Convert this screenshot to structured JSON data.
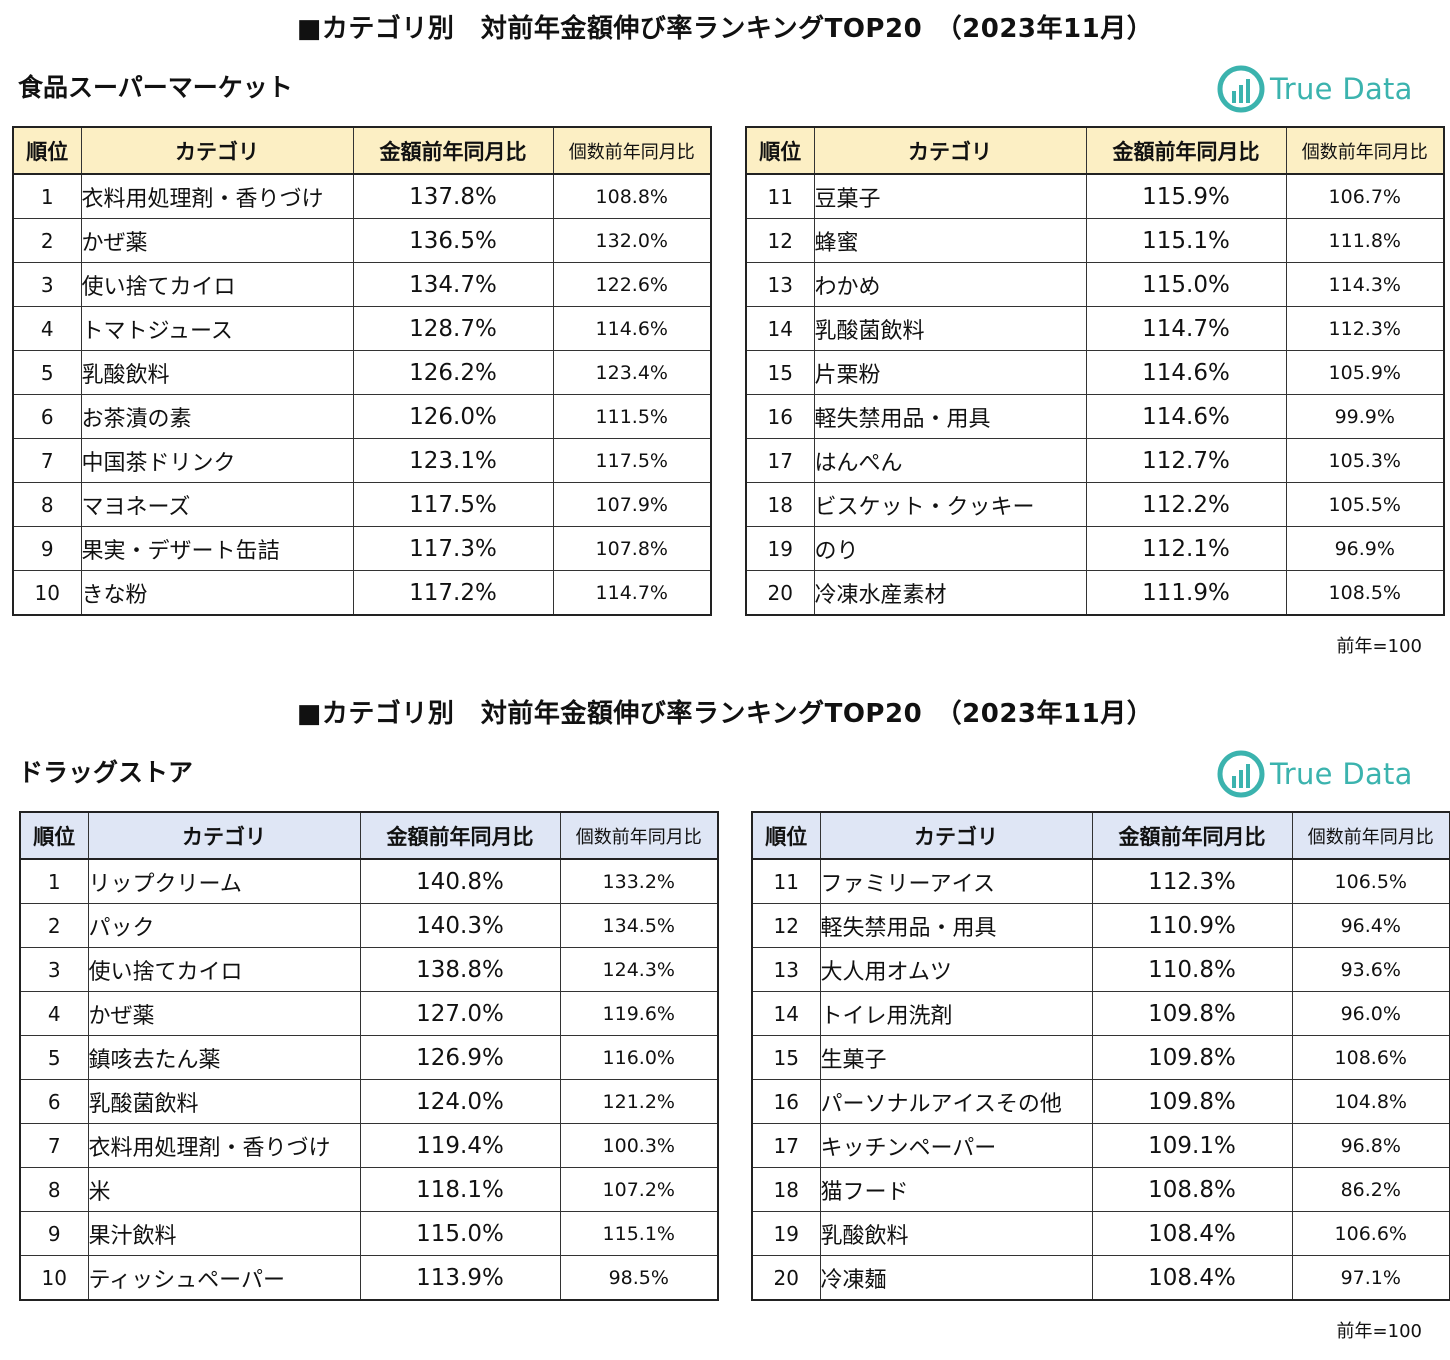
{
  "sections": [
    {
      "title": "■カテゴリ別　対前年金額伸び率ランキングTOP20　（2023年11月）",
      "subtitle": "食品スーパーマーケット",
      "logo": "True Data",
      "note": "前年=100",
      "headers": {
        "rank": "順位",
        "category": "カテゴリ",
        "amount": "金額前年同月比",
        "quantity": "個数前年同月比"
      },
      "left": [
        {
          "rank": "1",
          "name": "衣料用処理剤・香りづけ",
          "amount": "137.8%",
          "quantity": "108.8%"
        },
        {
          "rank": "2",
          "name": "かぜ薬",
          "amount": "136.5%",
          "quantity": "132.0%"
        },
        {
          "rank": "3",
          "name": "使い捨てカイロ",
          "amount": "134.7%",
          "quantity": "122.6%"
        },
        {
          "rank": "4",
          "name": "トマトジュース",
          "amount": "128.7%",
          "quantity": "114.6%"
        },
        {
          "rank": "5",
          "name": "乳酸飲料",
          "amount": "126.2%",
          "quantity": "123.4%"
        },
        {
          "rank": "6",
          "name": "お茶漬の素",
          "amount": "126.0%",
          "quantity": "111.5%"
        },
        {
          "rank": "7",
          "name": "中国茶ドリンク",
          "amount": "123.1%",
          "quantity": "117.5%"
        },
        {
          "rank": "8",
          "name": "マヨネーズ",
          "amount": "117.5%",
          "quantity": "107.9%"
        },
        {
          "rank": "9",
          "name": "果実・デザート缶詰",
          "amount": "117.3%",
          "quantity": "107.8%"
        },
        {
          "rank": "10",
          "name": "きな粉",
          "amount": "117.2%",
          "quantity": "114.7%"
        }
      ],
      "right": [
        {
          "rank": "11",
          "name": "豆菓子",
          "amount": "115.9%",
          "quantity": "106.7%"
        },
        {
          "rank": "12",
          "name": "蜂蜜",
          "amount": "115.1%",
          "quantity": "111.8%"
        },
        {
          "rank": "13",
          "name": "わかめ",
          "amount": "115.0%",
          "quantity": "114.3%"
        },
        {
          "rank": "14",
          "name": "乳酸菌飲料",
          "amount": "114.7%",
          "quantity": "112.3%"
        },
        {
          "rank": "15",
          "name": "片栗粉",
          "amount": "114.6%",
          "quantity": "105.9%"
        },
        {
          "rank": "16",
          "name": "軽失禁用品・用具",
          "amount": "114.6%",
          "quantity": "99.9%"
        },
        {
          "rank": "17",
          "name": "はんぺん",
          "amount": "112.7%",
          "quantity": "105.3%"
        },
        {
          "rank": "18",
          "name": "ビスケット・クッキー",
          "amount": "112.2%",
          "quantity": "105.5%"
        },
        {
          "rank": "19",
          "name": "のり",
          "amount": "112.1%",
          "quantity": "96.9%"
        },
        {
          "rank": "20",
          "name": "冷凍水産素材",
          "amount": "111.9%",
          "quantity": "108.5%"
        }
      ]
    },
    {
      "title": "■カテゴリ別　対前年金額伸び率ランキングTOP20　（2023年11月）",
      "subtitle": "ドラッグストア",
      "logo": "True Data",
      "note": "前年=100",
      "headers": {
        "rank": "順位",
        "category": "カテゴリ",
        "amount": "金額前年同月比",
        "quantity": "個数前年同月比"
      },
      "left": [
        {
          "rank": "1",
          "name": "リップクリーム",
          "amount": "140.8%",
          "quantity": "133.2%"
        },
        {
          "rank": "2",
          "name": "パック",
          "amount": "140.3%",
          "quantity": "134.5%"
        },
        {
          "rank": "3",
          "name": "使い捨てカイロ",
          "amount": "138.8%",
          "quantity": "124.3%"
        },
        {
          "rank": "4",
          "name": "かぜ薬",
          "amount": "127.0%",
          "quantity": "119.6%"
        },
        {
          "rank": "5",
          "name": "鎮咳去たん薬",
          "amount": "126.9%",
          "quantity": "116.0%"
        },
        {
          "rank": "6",
          "name": "乳酸菌飲料",
          "amount": "124.0%",
          "quantity": "121.2%"
        },
        {
          "rank": "7",
          "name": "衣料用処理剤・香りづけ",
          "amount": "119.4%",
          "quantity": "100.3%"
        },
        {
          "rank": "8",
          "name": "米",
          "amount": "118.1%",
          "quantity": "107.2%"
        },
        {
          "rank": "9",
          "name": "果汁飲料",
          "amount": "115.0%",
          "quantity": "115.1%"
        },
        {
          "rank": "10",
          "name": "ティッシュペーパー",
          "amount": "113.9%",
          "quantity": "98.5%"
        }
      ],
      "right": [
        {
          "rank": "11",
          "name": "ファミリーアイス",
          "amount": "112.3%",
          "quantity": "106.5%"
        },
        {
          "rank": "12",
          "name": "軽失禁用品・用具",
          "amount": "110.9%",
          "quantity": "96.4%"
        },
        {
          "rank": "13",
          "name": "大人用オムツ",
          "amount": "110.8%",
          "quantity": "93.6%"
        },
        {
          "rank": "14",
          "name": "トイレ用洗剤",
          "amount": "109.8%",
          "quantity": "96.0%"
        },
        {
          "rank": "15",
          "name": "生菓子",
          "amount": "109.8%",
          "quantity": "108.6%"
        },
        {
          "rank": "16",
          "name": "パーソナルアイスその他",
          "amount": "109.8%",
          "quantity": "104.8%"
        },
        {
          "rank": "17",
          "name": "キッチンペーパー",
          "amount": "109.1%",
          "quantity": "96.8%"
        },
        {
          "rank": "18",
          "name": "猫フード",
          "amount": "108.8%",
          "quantity": "86.2%"
        },
        {
          "rank": "19",
          "name": "乳酸飲料",
          "amount": "108.4%",
          "quantity": "106.6%"
        },
        {
          "rank": "20",
          "name": "冷凍麺",
          "amount": "108.4%",
          "quantity": "97.1%"
        }
      ]
    }
  ]
}
